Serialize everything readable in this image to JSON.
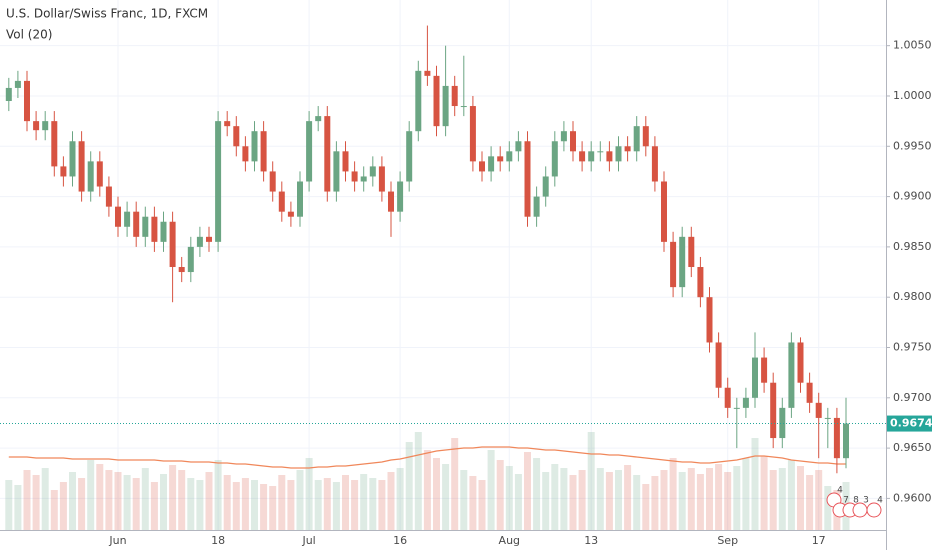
{
  "chart_data": {
    "type": "candlestick",
    "title": "U.S. Dollar/Swiss Franc, 1D, FXCM",
    "indicator_label": "Vol (20)",
    "categories": [
      null,
      null,
      null,
      null,
      null,
      null,
      null,
      null,
      null,
      null,
      null,
      null,
      "Jun",
      null,
      null,
      null,
      null,
      null,
      null,
      null,
      null,
      null,
      null,
      "18",
      null,
      null,
      null,
      null,
      null,
      null,
      null,
      null,
      null,
      "Jul",
      null,
      null,
      null,
      null,
      null,
      null,
      null,
      null,
      null,
      "16",
      null,
      null,
      null,
      null,
      null,
      null,
      null,
      null,
      null,
      null,
      null,
      "Aug",
      null,
      null,
      null,
      null,
      null,
      null,
      null,
      null,
      "13",
      null,
      null,
      null,
      null,
      null,
      null,
      null,
      null,
      null,
      null,
      null,
      null,
      null,
      null,
      "Sep",
      null,
      null,
      null,
      null,
      null,
      null,
      null,
      null,
      null,
      "17",
      null,
      null,
      null
    ],
    "open": [
      0.9995,
      1.0008,
      1.0015,
      0.9975,
      0.9966,
      0.9975,
      0.993,
      0.992,
      0.9955,
      0.9905,
      0.9935,
      0.991,
      0.989,
      0.987,
      0.9885,
      0.986,
      0.988,
      0.9855,
      0.9875,
      0.983,
      0.9825,
      0.985,
      0.986,
      0.9855,
      0.9975,
      0.997,
      0.995,
      0.9935,
      0.9965,
      0.9925,
      0.9905,
      0.9885,
      0.988,
      0.9915,
      0.9975,
      0.998,
      0.9905,
      0.9945,
      0.9925,
      0.9915,
      0.992,
      0.993,
      0.9905,
      0.9885,
      0.9915,
      0.9965,
      1.0025,
      1.002,
      0.997,
      1.001,
      0.999,
      0.999,
      0.9935,
      0.9925,
      0.994,
      0.9935,
      0.9945,
      0.9955,
      0.988,
      0.99,
      0.992,
      0.9955,
      0.9965,
      0.9945,
      0.9935,
      0.9945,
      0.9945,
      0.9935,
      0.995,
      0.9945,
      0.997,
      0.995,
      0.9915,
      0.9855,
      0.981,
      0.986,
      0.983,
      0.98,
      0.9755,
      0.971,
      0.969,
      0.969,
      0.97,
      0.974,
      0.9715,
      0.966,
      0.969,
      0.9755,
      0.9715,
      0.9695,
      0.968,
      0.968,
      0.964
    ],
    "high": [
      1.0018,
      1.0025,
      1.0025,
      0.9985,
      0.9985,
      0.9985,
      0.994,
      0.9965,
      0.9965,
      0.9945,
      0.9945,
      0.992,
      0.99,
      0.9895,
      0.9895,
      0.989,
      0.989,
      0.9885,
      0.9885,
      0.984,
      0.986,
      0.987,
      0.987,
      0.9985,
      0.9985,
      0.998,
      0.996,
      0.9975,
      0.9975,
      0.9935,
      0.9915,
      0.9895,
      0.9925,
      0.9985,
      0.999,
      0.999,
      0.9955,
      0.9955,
      0.9935,
      0.993,
      0.994,
      0.994,
      0.9915,
      0.9925,
      0.9975,
      1.0035,
      1.007,
      1.003,
      1.005,
      1.002,
      1.004,
      1.0,
      0.9945,
      0.995,
      0.995,
      0.9955,
      0.9965,
      0.9965,
      0.991,
      0.993,
      0.9965,
      0.9975,
      0.9975,
      0.9955,
      0.9955,
      0.9955,
      0.9955,
      0.996,
      0.996,
      0.998,
      0.998,
      0.996,
      0.9925,
      0.9865,
      0.987,
      0.987,
      0.984,
      0.981,
      0.9765,
      0.972,
      0.97,
      0.971,
      0.9765,
      0.975,
      0.9725,
      0.97,
      0.9765,
      0.976,
      0.9725,
      0.9705,
      0.969,
      0.969,
      0.97
    ],
    "low": [
      0.9985,
      0.9998,
      0.9965,
      0.9956,
      0.9956,
      0.992,
      0.991,
      0.991,
      0.9895,
      0.9895,
      0.99,
      0.988,
      0.986,
      0.986,
      0.985,
      0.985,
      0.9845,
      0.9845,
      0.9795,
      0.9815,
      0.9815,
      0.984,
      0.9845,
      0.9845,
      0.996,
      0.994,
      0.9925,
      0.9925,
      0.9915,
      0.9895,
      0.9875,
      0.987,
      0.987,
      0.9905,
      0.9965,
      0.9895,
      0.9895,
      0.9915,
      0.9905,
      0.9905,
      0.991,
      0.9895,
      0.986,
      0.9875,
      0.9905,
      0.9955,
      1.001,
      0.996,
      0.996,
      0.998,
      0.998,
      0.9925,
      0.9915,
      0.9915,
      0.9925,
      0.9925,
      0.9935,
      0.987,
      0.987,
      0.989,
      0.991,
      0.9945,
      0.9935,
      0.9925,
      0.9925,
      0.9935,
      0.9925,
      0.9925,
      0.9935,
      0.9935,
      0.994,
      0.9905,
      0.9845,
      0.98,
      0.98,
      0.982,
      0.979,
      0.9745,
      0.97,
      0.968,
      0.965,
      0.968,
      0.969,
      0.9705,
      0.965,
      0.965,
      0.968,
      0.9705,
      0.9685,
      0.964,
      0.965,
      0.9625,
      0.963
    ],
    "close": [
      1.0008,
      1.0015,
      0.9975,
      0.9966,
      0.9975,
      0.993,
      0.992,
      0.9955,
      0.9905,
      0.9935,
      0.991,
      0.989,
      0.987,
      0.9885,
      0.986,
      0.988,
      0.9855,
      0.9875,
      0.983,
      0.9825,
      0.985,
      0.986,
      0.9855,
      0.9975,
      0.997,
      0.995,
      0.9935,
      0.9965,
      0.9925,
      0.9905,
      0.9885,
      0.988,
      0.9915,
      0.9975,
      0.998,
      0.9905,
      0.9945,
      0.9925,
      0.9915,
      0.992,
      0.993,
      0.9905,
      0.9885,
      0.9915,
      0.9965,
      1.0025,
      1.002,
      0.997,
      1.001,
      0.999,
      0.999,
      0.9935,
      0.9925,
      0.994,
      0.9935,
      0.9945,
      0.9955,
      0.988,
      0.99,
      0.992,
      0.9955,
      0.9965,
      0.9945,
      0.9935,
      0.9945,
      0.9945,
      0.9935,
      0.995,
      0.9945,
      0.997,
      0.995,
      0.9915,
      0.9855,
      0.981,
      0.986,
      0.983,
      0.98,
      0.9755,
      0.971,
      0.969,
      0.969,
      0.97,
      0.974,
      0.9715,
      0.966,
      0.969,
      0.9755,
      0.9715,
      0.9695,
      0.968,
      0.968,
      0.964,
      0.96744
    ],
    "volume": [
      50,
      45,
      60,
      55,
      62,
      40,
      48,
      58,
      52,
      70,
      66,
      60,
      58,
      55,
      52,
      62,
      48,
      56,
      65,
      60,
      52,
      50,
      58,
      70,
      55,
      48,
      52,
      50,
      46,
      44,
      55,
      50,
      60,
      72,
      50,
      52,
      48,
      55,
      50,
      56,
      52,
      50,
      58,
      62,
      88,
      98,
      80,
      72,
      66,
      92,
      60,
      54,
      50,
      80,
      70,
      64,
      56,
      78,
      72,
      58,
      66,
      62,
      55,
      60,
      98,
      62,
      58,
      60,
      65,
      55,
      46,
      54,
      60,
      72,
      58,
      62,
      56,
      62,
      66,
      58,
      64,
      72,
      92,
      74,
      60,
      62,
      70,
      64,
      55,
      60,
      44,
      40,
      48
    ],
    "volume_ma": [
      73,
      73,
      73,
      72,
      72,
      72,
      72,
      71,
      71,
      71,
      71,
      71,
      70,
      70,
      70,
      70,
      70,
      69,
      69,
      69,
      68,
      68,
      68,
      67,
      67,
      66,
      66,
      65,
      64,
      63,
      63,
      62,
      62,
      62,
      63,
      63,
      64,
      64,
      65,
      66,
      67,
      68,
      70,
      71,
      73,
      75,
      77,
      79,
      80,
      81,
      82,
      82,
      83,
      83,
      83,
      83,
      82,
      82,
      81,
      80,
      80,
      79,
      78,
      77,
      76,
      76,
      75,
      75,
      74,
      73,
      72,
      71,
      70,
      69,
      68,
      68,
      67,
      67,
      68,
      69,
      70,
      72,
      74,
      74,
      73,
      72,
      70,
      69,
      68,
      67,
      67,
      66,
      66
    ],
    "up_color": "#6ba583",
    "down_color": "#d75442",
    "volume_ma_color": "#f0875a",
    "last_price_color": "#26a69a",
    "ylim": [
      0.95686,
      1.00954
    ],
    "yticks": [
      {
        "value": 0.96,
        "label": "0.96000"
      },
      {
        "value": 0.965,
        "label": "0.96500"
      },
      {
        "value": 0.97,
        "label": "0.97000"
      },
      {
        "value": 0.975,
        "label": "0.97500"
      },
      {
        "value": 0.98,
        "label": "0.98000"
      },
      {
        "value": 0.985,
        "label": "0.98500"
      },
      {
        "value": 0.99,
        "label": "0.99000"
      },
      {
        "value": 0.995,
        "label": "0.99500"
      },
      {
        "value": 1.0,
        "label": "1.00000"
      },
      {
        "value": 1.005,
        "label": "1.00500"
      }
    ],
    "last_price": 0.96744,
    "grid": true,
    "event_badges": [
      "4",
      "7",
      "8",
      "3",
      "4"
    ]
  }
}
